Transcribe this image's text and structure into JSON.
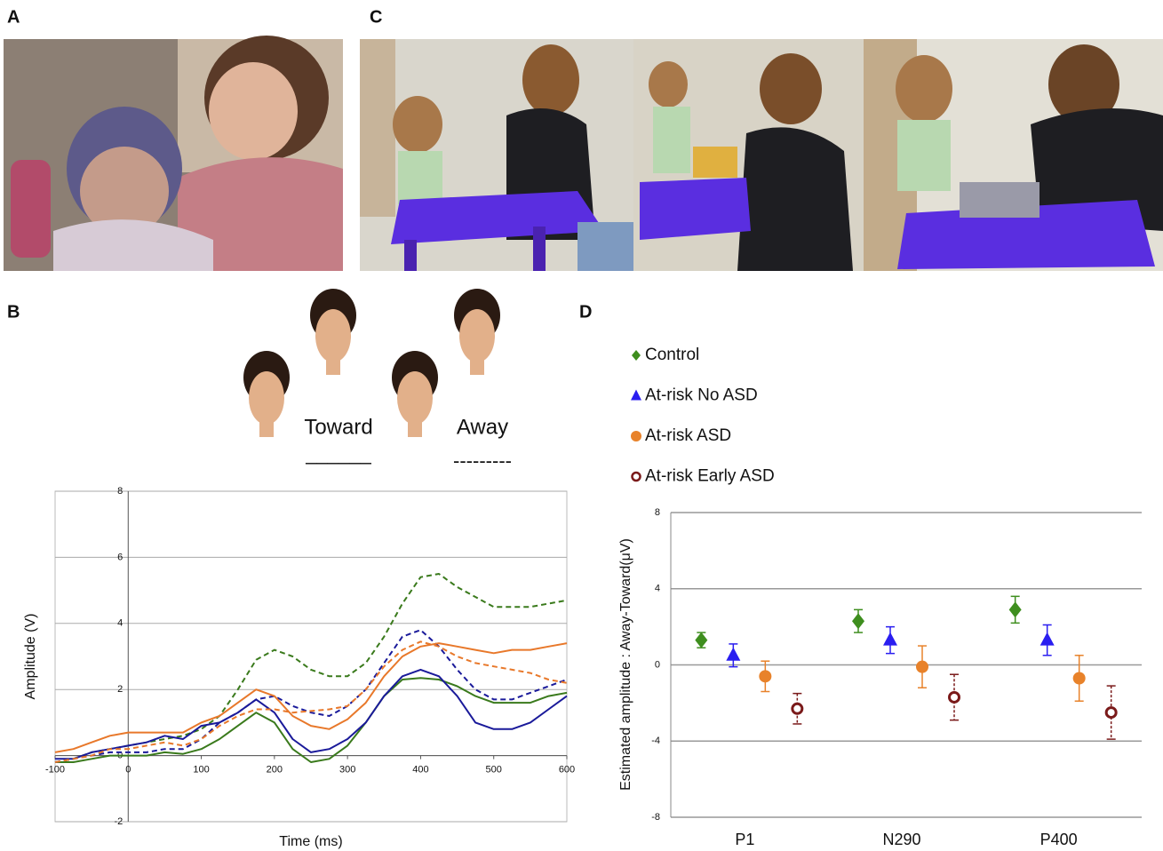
{
  "panel_labels": [
    "A",
    "B",
    "C",
    "D"
  ],
  "stimulus": {
    "toward": "Toward",
    "away": "Away",
    "toward_line": "______",
    "away_line": "---------"
  },
  "chart_data": [
    {
      "type": "line",
      "xlabel": "Time (ms)",
      "ylabel": "Amplitude (V)",
      "x": [
        -100,
        -75,
        -50,
        -25,
        0,
        25,
        50,
        75,
        100,
        125,
        150,
        175,
        200,
        225,
        250,
        275,
        300,
        325,
        350,
        375,
        400,
        425,
        450,
        475,
        500,
        525,
        550,
        575,
        600
      ],
      "xlim": [
        -100,
        600
      ],
      "xticks": [
        -100,
        0,
        100,
        200,
        300,
        400,
        500,
        600
      ],
      "ylim": [
        -2,
        8
      ],
      "yticks": [
        -2,
        0,
        2,
        4,
        6,
        8
      ],
      "grid": true,
      "series": [
        {
          "color": "#3a7a1c",
          "dashed": true,
          "values": [
            -0.2,
            -0.1,
            0.1,
            0.2,
            0.3,
            0.4,
            0.5,
            0.6,
            0.8,
            1.2,
            2.0,
            2.9,
            3.2,
            3.0,
            2.6,
            2.4,
            2.4,
            2.8,
            3.6,
            4.6,
            5.4,
            5.5,
            5.1,
            4.8,
            4.5,
            4.5,
            4.5,
            4.6,
            4.7
          ]
        },
        {
          "color": "#3a7a1c",
          "dashed": false,
          "values": [
            -0.2,
            -0.2,
            -0.1,
            0,
            0,
            0,
            0.1,
            0.05,
            0.2,
            0.5,
            0.9,
            1.3,
            1.0,
            0.2,
            -0.2,
            -0.1,
            0.3,
            1.0,
            1.8,
            2.3,
            2.35,
            2.3,
            2.1,
            1.8,
            1.6,
            1.6,
            1.6,
            1.8,
            1.9
          ]
        },
        {
          "color": "#1a1a9a",
          "dashed": false,
          "values": [
            -0.1,
            -0.1,
            0.1,
            0.2,
            0.3,
            0.4,
            0.6,
            0.5,
            0.9,
            1.0,
            1.3,
            1.7,
            1.3,
            0.5,
            0.1,
            0.2,
            0.5,
            1.0,
            1.8,
            2.4,
            2.6,
            2.4,
            1.8,
            1.0,
            0.8,
            0.8,
            1.0,
            1.4,
            1.8
          ]
        },
        {
          "color": "#1a1a9a",
          "dashed": true,
          "values": [
            -0.2,
            -0.1,
            0,
            0.1,
            0.1,
            0.1,
            0.2,
            0.2,
            0.5,
            1.0,
            1.3,
            1.7,
            1.8,
            1.5,
            1.3,
            1.2,
            1.5,
            2.0,
            2.8,
            3.6,
            3.8,
            3.3,
            2.6,
            2.0,
            1.7,
            1.7,
            1.9,
            2.1,
            2.3
          ]
        },
        {
          "color": "#e8782a",
          "dashed": false,
          "values": [
            0.1,
            0.2,
            0.4,
            0.6,
            0.7,
            0.7,
            0.7,
            0.7,
            1.0,
            1.2,
            1.6,
            2.0,
            1.8,
            1.2,
            0.9,
            0.8,
            1.1,
            1.6,
            2.4,
            3.0,
            3.3,
            3.4,
            3.3,
            3.2,
            3.1,
            3.2,
            3.2,
            3.3,
            3.4
          ]
        },
        {
          "color": "#e8782a",
          "dashed": true,
          "values": [
            -0.2,
            -0.1,
            0,
            0.2,
            0.2,
            0.3,
            0.4,
            0.3,
            0.5,
            0.9,
            1.2,
            1.4,
            1.4,
            1.3,
            1.35,
            1.4,
            1.5,
            2.0,
            2.7,
            3.2,
            3.45,
            3.3,
            3.0,
            2.8,
            2.7,
            2.6,
            2.5,
            2.3,
            2.2
          ]
        }
      ]
    },
    {
      "type": "errorbar",
      "ylabel": "Estimated amplitude : Away-Toward(μV)",
      "categories": [
        "P1",
        "N290",
        "P400"
      ],
      "ylim": [
        -8,
        8
      ],
      "yticks": [
        -8,
        -4,
        0,
        4,
        8
      ],
      "grid": true,
      "series": [
        {
          "name": "Control",
          "color": "#3e8e1e",
          "marker": "diamond",
          "dashed": false,
          "values": [
            1.3,
            2.3,
            2.9
          ],
          "errors": [
            0.4,
            0.6,
            0.7
          ]
        },
        {
          "name": "At-risk No ASD",
          "color": "#2a1ef0",
          "marker": "triangle",
          "dashed": false,
          "values": [
            0.5,
            1.3,
            1.3
          ],
          "errors": [
            0.6,
            0.7,
            0.8
          ]
        },
        {
          "name": "At-risk ASD",
          "color": "#e8822a",
          "marker": "circle",
          "dashed": false,
          "values": [
            -0.6,
            -0.1,
            -0.7
          ],
          "errors": [
            0.8,
            1.1,
            1.2
          ]
        },
        {
          "name": "At-risk Early ASD",
          "color": "#7a1a1a",
          "marker": "open-circle",
          "dashed": true,
          "values": [
            -2.3,
            -1.7,
            -2.5
          ],
          "errors": [
            0.8,
            1.2,
            1.4
          ]
        }
      ]
    }
  ]
}
